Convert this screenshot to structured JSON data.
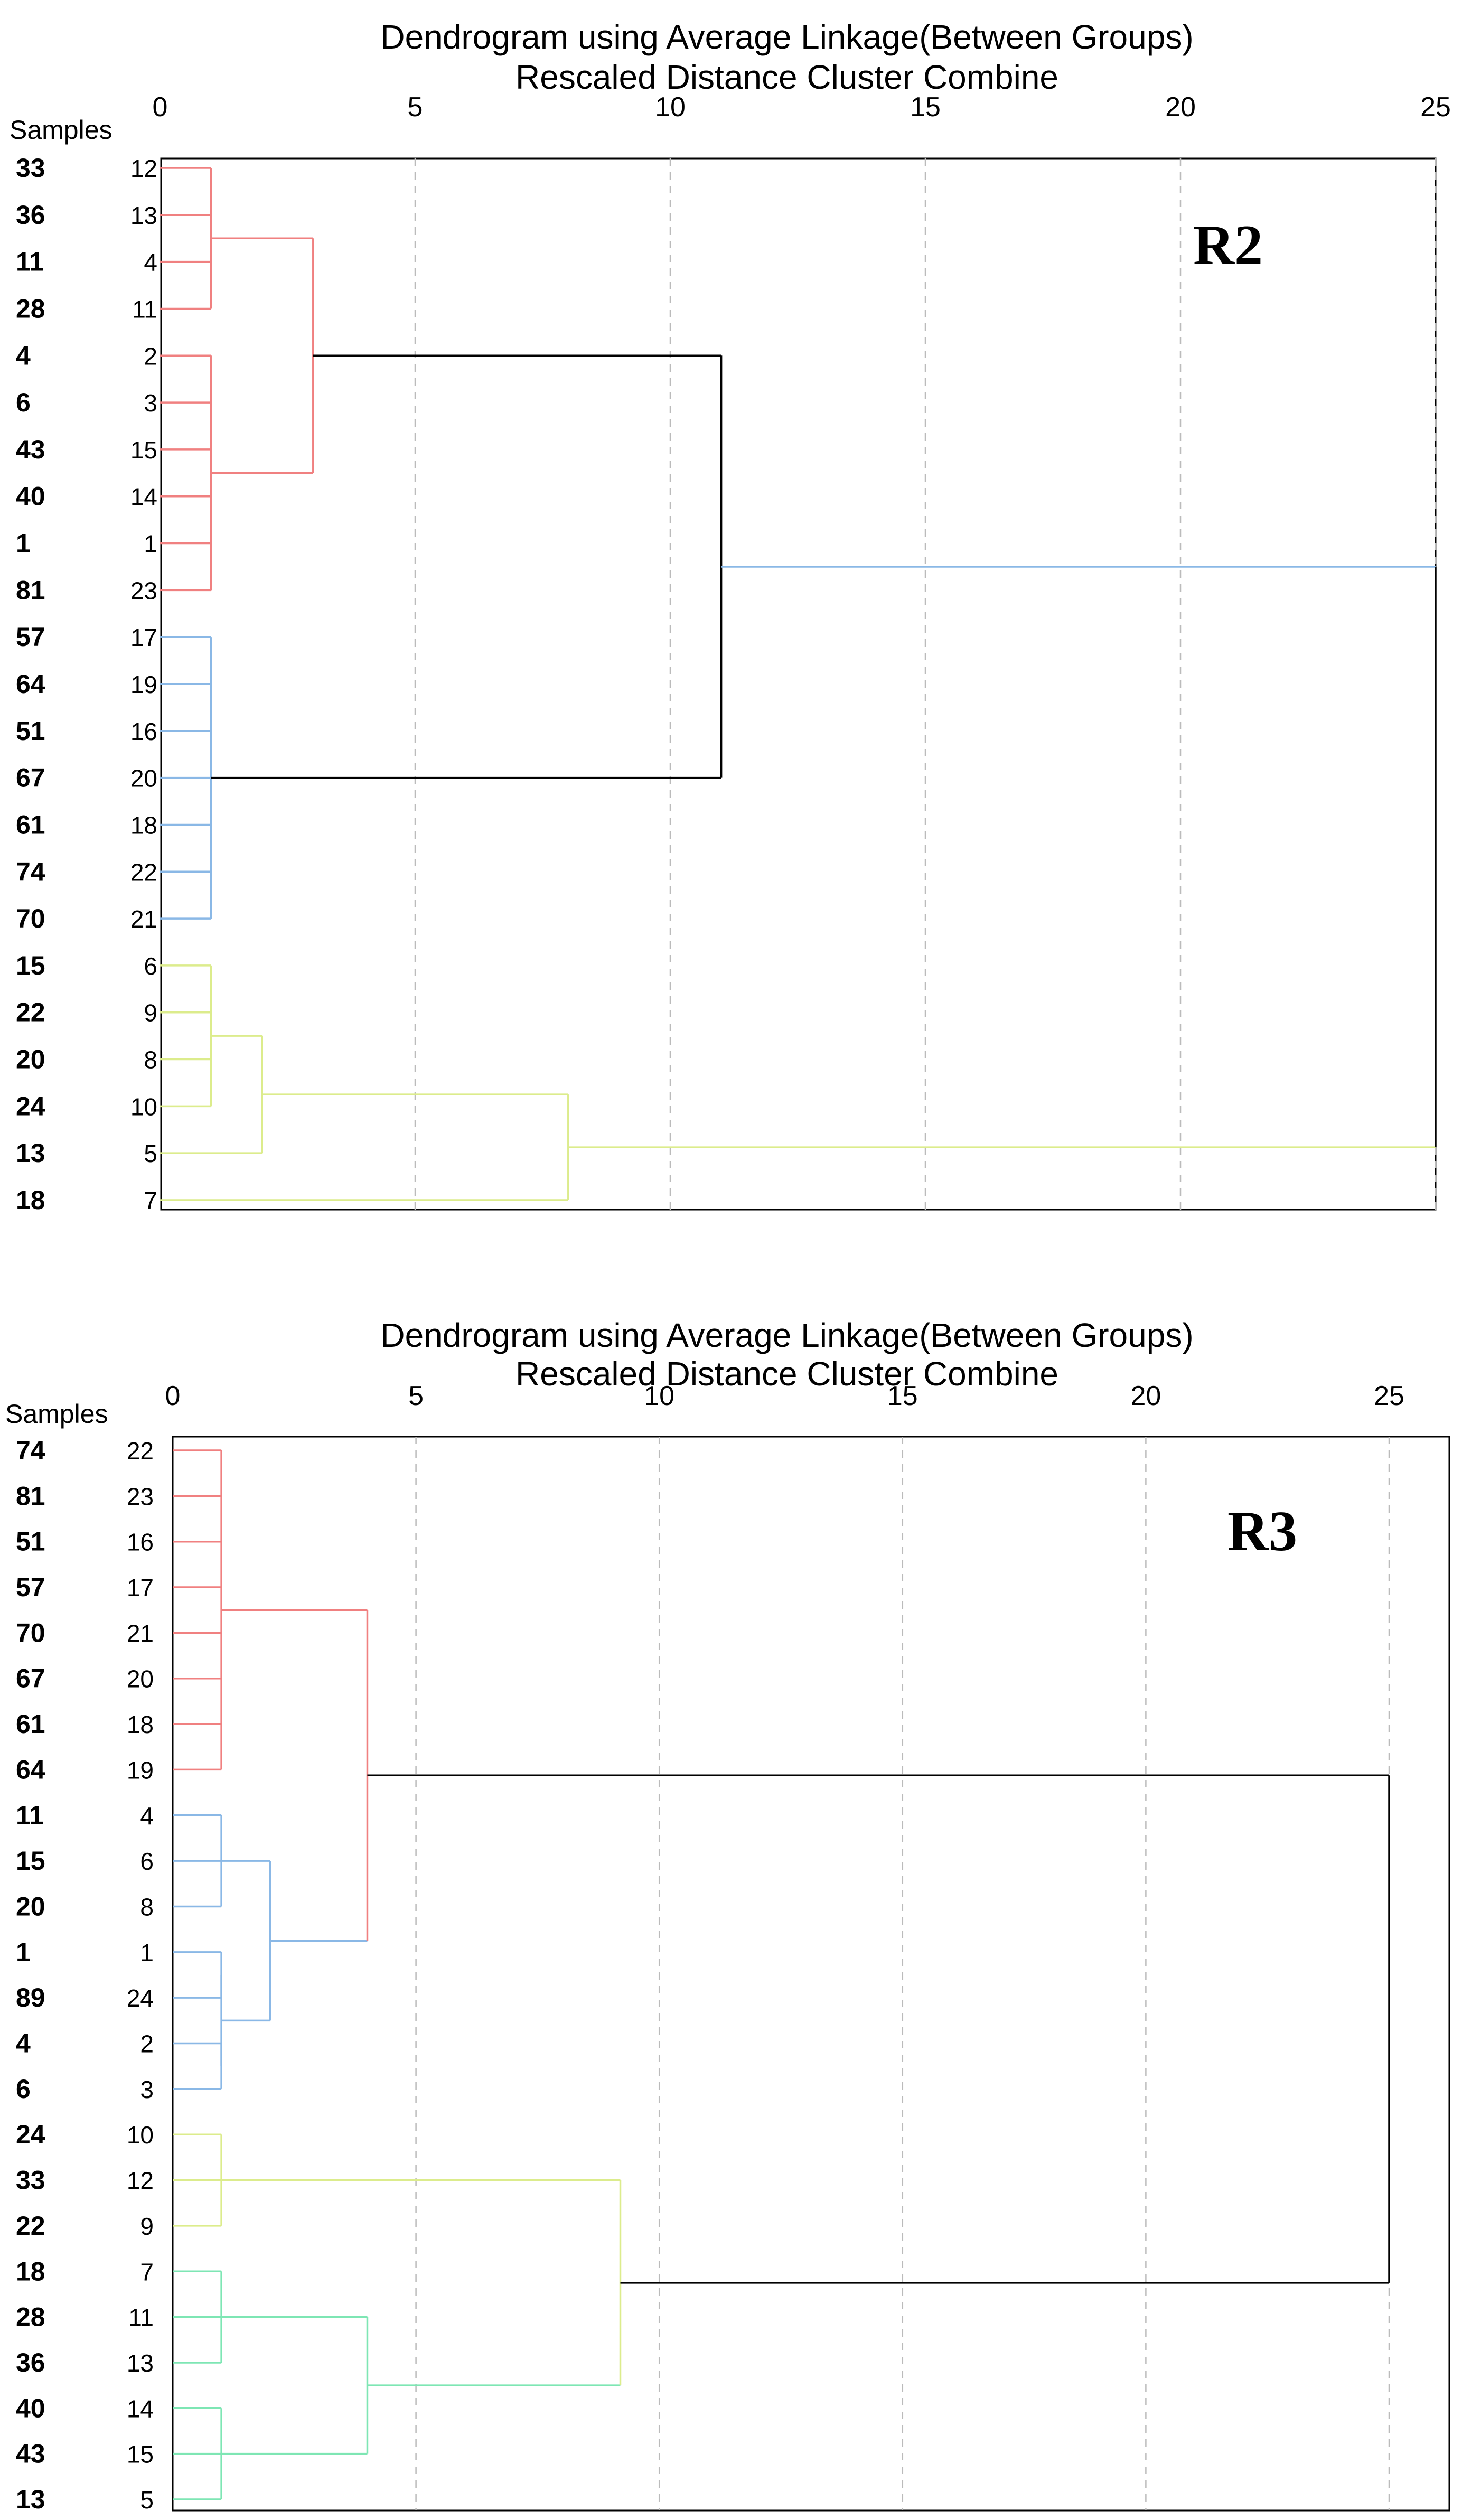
{
  "chart_data": [
    {
      "type": "dendrogram",
      "title": "Dendrogram using Average Linkage(Between Groups)",
      "subtitle": "Rescaled Distance Cluster Combine",
      "panel_label": "R2",
      "samples_header": "Samples",
      "xlim": [
        0,
        25
      ],
      "ticks": [
        0,
        5,
        10,
        15,
        20,
        25
      ],
      "grid": true,
      "leaves": [
        {
          "sample": "33",
          "case": "12"
        },
        {
          "sample": "36",
          "case": "13"
        },
        {
          "sample": "11",
          "case": "4"
        },
        {
          "sample": "28",
          "case": "11"
        },
        {
          "sample": "4",
          "case": "2"
        },
        {
          "sample": "6",
          "case": "3"
        },
        {
          "sample": "43",
          "case": "15"
        },
        {
          "sample": "40",
          "case": "14"
        },
        {
          "sample": "1",
          "case": "1"
        },
        {
          "sample": "81",
          "case": "23"
        },
        {
          "sample": "57",
          "case": "17"
        },
        {
          "sample": "64",
          "case": "19"
        },
        {
          "sample": "51",
          "case": "16"
        },
        {
          "sample": "67",
          "case": "20"
        },
        {
          "sample": "61",
          "case": "18"
        },
        {
          "sample": "74",
          "case": "22"
        },
        {
          "sample": "70",
          "case": "21"
        },
        {
          "sample": "15",
          "case": "6"
        },
        {
          "sample": "22",
          "case": "9"
        },
        {
          "sample": "20",
          "case": "8"
        },
        {
          "sample": "24",
          "case": "10"
        },
        {
          "sample": "13",
          "case": "5"
        },
        {
          "sample": "18",
          "case": "7"
        }
      ],
      "merges": [
        {
          "id": "A",
          "children": [
            0,
            1,
            2,
            3
          ],
          "height": 1,
          "color": "#f08080"
        },
        {
          "id": "B",
          "children": [
            4,
            5,
            6,
            7,
            8,
            9
          ],
          "height": 1,
          "color": "#f08080"
        },
        {
          "id": "C",
          "children": [
            "A",
            "B"
          ],
          "height": 3,
          "color": "#f08080"
        },
        {
          "id": "D",
          "children": [
            10,
            11,
            12,
            13,
            14,
            15,
            16
          ],
          "height": 1,
          "color": "#8ab8e6"
        },
        {
          "id": "E",
          "children": [
            "C",
            "D"
          ],
          "height": 11,
          "color": "#000000"
        },
        {
          "id": "F",
          "children": [
            17,
            18,
            19,
            20
          ],
          "height": 1,
          "color": "#dcec8c"
        },
        {
          "id": "G",
          "children": [
            "F",
            21
          ],
          "height": 2,
          "color": "#dcec8c"
        },
        {
          "id": "H",
          "children": [
            "G",
            22
          ],
          "height": 8,
          "color": "#dcec8c"
        },
        {
          "id": "I",
          "children": [
            "E",
            "H"
          ],
          "height": 25,
          "color": "#000000"
        }
      ],
      "link_colors": {
        "E": "#8ab8e6",
        "H": "#dcec8c"
      }
    },
    {
      "type": "dendrogram",
      "title": "Dendrogram using Average Linkage(Between Groups)",
      "subtitle": "Rescaled Distance Cluster Combine",
      "panel_label": "R3",
      "samples_header": "Samples",
      "xlim": [
        0,
        25
      ],
      "ticks": [
        0,
        5,
        10,
        15,
        20,
        25
      ],
      "grid": true,
      "leaves": [
        {
          "sample": "74",
          "case": "22"
        },
        {
          "sample": "81",
          "case": "23"
        },
        {
          "sample": "51",
          "case": "16"
        },
        {
          "sample": "57",
          "case": "17"
        },
        {
          "sample": "70",
          "case": "21"
        },
        {
          "sample": "67",
          "case": "20"
        },
        {
          "sample": "61",
          "case": "18"
        },
        {
          "sample": "64",
          "case": "19"
        },
        {
          "sample": "11",
          "case": "4"
        },
        {
          "sample": "15",
          "case": "6"
        },
        {
          "sample": "20",
          "case": "8"
        },
        {
          "sample": "1",
          "case": "1"
        },
        {
          "sample": "89",
          "case": "24"
        },
        {
          "sample": "4",
          "case": "2"
        },
        {
          "sample": "6",
          "case": "3"
        },
        {
          "sample": "24",
          "case": "10"
        },
        {
          "sample": "33",
          "case": "12"
        },
        {
          "sample": "22",
          "case": "9"
        },
        {
          "sample": "18",
          "case": "7"
        },
        {
          "sample": "28",
          "case": "11"
        },
        {
          "sample": "36",
          "case": "13"
        },
        {
          "sample": "40",
          "case": "14"
        },
        {
          "sample": "43",
          "case": "15"
        },
        {
          "sample": "13",
          "case": "5"
        }
      ],
      "merges": [
        {
          "id": "A",
          "children": [
            0,
            1,
            2,
            3,
            4,
            5,
            6,
            7
          ],
          "height": 1,
          "color": "#f08080"
        },
        {
          "id": "B",
          "children": [
            8,
            9,
            10
          ],
          "height": 1,
          "color": "#8ab8e6"
        },
        {
          "id": "C",
          "children": [
            11,
            12
          ],
          "height": 1,
          "color": "#8ab8e6"
        },
        {
          "id": "D",
          "children": [
            13,
            14
          ],
          "height": 1,
          "color": "#8ab8e6"
        },
        {
          "id": "E",
          "children": [
            "C",
            "D"
          ],
          "height": 1,
          "color": "#8ab8e6"
        },
        {
          "id": "F",
          "children": [
            "B",
            "E"
          ],
          "height": 2,
          "color": "#8ab8e6"
        },
        {
          "id": "G",
          "children": [
            "A",
            "F"
          ],
          "height": 4,
          "color": "#f08080"
        },
        {
          "id": "H",
          "children": [
            15,
            16,
            17
          ],
          "height": 1,
          "color": "#dcec8c"
        },
        {
          "id": "I",
          "children": [
            18,
            19,
            20
          ],
          "height": 1,
          "color": "#7ee6b4"
        },
        {
          "id": "J",
          "children": [
            21,
            22,
            23
          ],
          "height": 1,
          "color": "#7ee6b4"
        },
        {
          "id": "K",
          "children": [
            "I",
            "J"
          ],
          "height": 4,
          "color": "#7ee6b4"
        },
        {
          "id": "L",
          "children": [
            "H",
            "K"
          ],
          "height": 9.2,
          "color": "#dcec8c"
        },
        {
          "id": "M",
          "children": [
            "G",
            "L"
          ],
          "height": 25,
          "color": "#000000"
        }
      ],
      "link_colors": {
        "F": "#8ab8e6",
        "K": "#7ee6b4"
      }
    }
  ]
}
